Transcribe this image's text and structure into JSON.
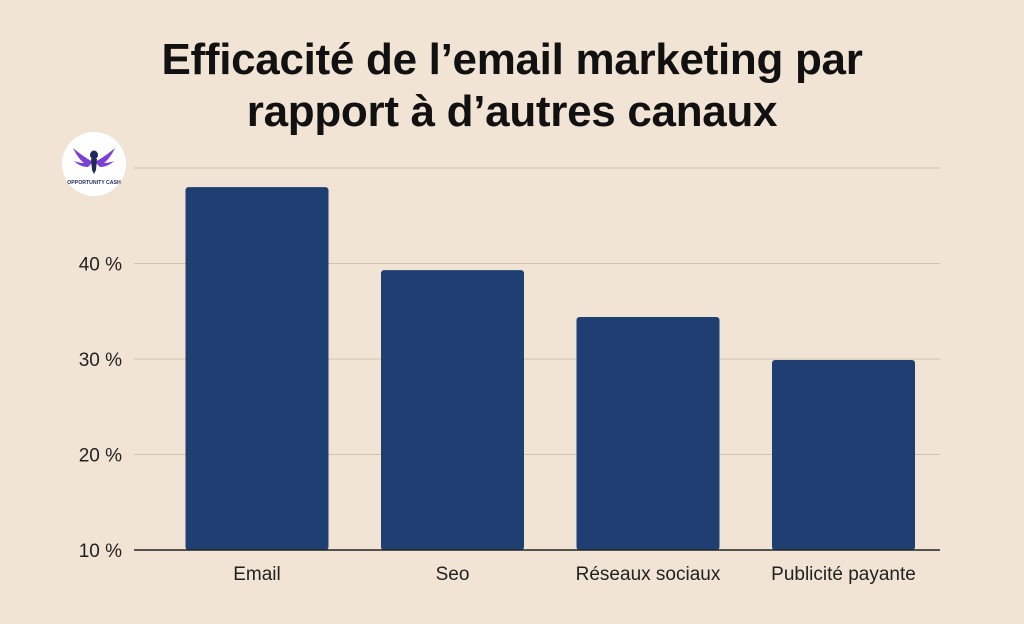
{
  "logo": {
    "text": "OPPORTUNITY CASH",
    "icon": "eagle-icon",
    "colors": {
      "wing": "#7b3fd6",
      "body": "#1e2a5a"
    }
  },
  "chart_data": {
    "type": "bar",
    "title_lines": [
      "Efficacité de l’email marketing par",
      "rapport à d’autres canaux"
    ],
    "categories": [
      "Email",
      "Seo",
      "Réseaux sociaux",
      "Publicité payante"
    ],
    "values": [
      48,
      39.3,
      34.4,
      29.9
    ],
    "ylim": [
      10,
      50
    ],
    "yticks": [
      10,
      20,
      30,
      40
    ],
    "ytick_labels": [
      "10 %",
      "20 %",
      "30 %",
      "40 %"
    ],
    "xlabel": "",
    "ylabel": "",
    "grid": true,
    "bar_color": "#1f3f73",
    "grid_color": "#d2c2ae",
    "axis_color": "#222222"
  }
}
